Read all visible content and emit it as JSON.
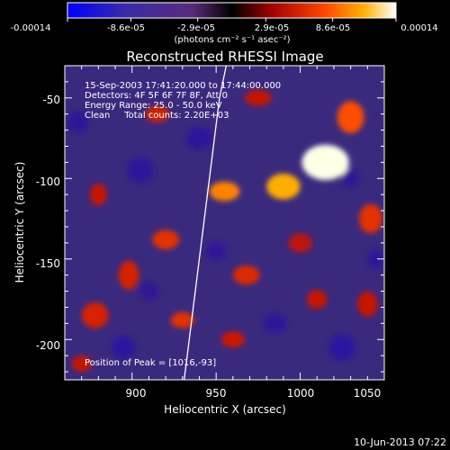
{
  "chart_data": {
    "type": "heatmap",
    "title": "Reconstructed RHESSI Image",
    "xlabel": "Heliocentric X (arcsec)",
    "ylabel": "Heliocentric Y (arcsec)",
    "xlim": [
      860,
      1050
    ],
    "ylim": [
      -225,
      -30
    ],
    "x_ticks": [
      900,
      950,
      1000,
      1050
    ],
    "y_ticks": [
      -50,
      -100,
      -150,
      -200
    ],
    "colorbar": {
      "tick_labels": [
        "-0.00014",
        "-8.6e-05",
        "-2.9e-05",
        "2.9e-05",
        "8.6e-05",
        "0.00014"
      ],
      "tick_values": [
        -0.00014,
        -8.6e-05,
        -2.9e-05,
        2.9e-05,
        8.6e-05,
        0.00014
      ],
      "range": [
        -0.00014,
        0.00014
      ],
      "units": "(photons cm⁻² s⁻¹ asec⁻²)"
    },
    "annotations": [
      "15-Sep-2003 17:41:20.000 to 17:44:00.000",
      "Detectors: 4F 5F 6F 7F 8F, Att 0",
      "Energy Range: 25.0 - 50.0 keV",
      "Clean     Total counts: 2.20E+03"
    ],
    "peak_label": "Position of Peak = [1016,-93]",
    "peak": [
      1016,
      -93
    ],
    "limb_line": [
      [
        931,
        -225
      ],
      [
        937,
        -175
      ],
      [
        943,
        -125
      ],
      [
        952,
        -50
      ],
      [
        956,
        -30
      ]
    ],
    "sources": [
      {
        "x": 1015,
        "y": -90,
        "value": 0.00014,
        "sx": 14,
        "sy": 11
      },
      {
        "x": 990,
        "y": -105,
        "value": 0.00011,
        "sx": 10,
        "sy": 8
      },
      {
        "x": 955,
        "y": -108,
        "value": 9.5e-05,
        "sx": 9,
        "sy": 6
      },
      {
        "x": 1030,
        "y": -62,
        "value": 7.5e-05,
        "sx": 8,
        "sy": 10
      },
      {
        "x": 1042,
        "y": -125,
        "value": 6e-05,
        "sx": 7,
        "sy": 9
      },
      {
        "x": 920,
        "y": -138,
        "value": 6e-05,
        "sx": 8,
        "sy": 6
      },
      {
        "x": 898,
        "y": -160,
        "value": 5e-05,
        "sx": 6,
        "sy": 9
      },
      {
        "x": 968,
        "y": -160,
        "value": 5.5e-05,
        "sx": 8,
        "sy": 6
      },
      {
        "x": 1010,
        "y": -175,
        "value": 4e-05,
        "sx": 6,
        "sy": 6
      },
      {
        "x": 930,
        "y": -188,
        "value": 6e-05,
        "sx": 7,
        "sy": 5
      },
      {
        "x": 878,
        "y": -185,
        "value": 5e-05,
        "sx": 8,
        "sy": 8
      },
      {
        "x": 960,
        "y": -200,
        "value": 4.5e-05,
        "sx": 7,
        "sy": 5
      },
      {
        "x": 1040,
        "y": -178,
        "value": 4e-05,
        "sx": 6,
        "sy": 8
      },
      {
        "x": 915,
        "y": -60,
        "value": 5e-05,
        "sx": 7,
        "sy": 5
      },
      {
        "x": 975,
        "y": -50,
        "value": 4e-05,
        "sx": 8,
        "sy": 5
      },
      {
        "x": 880,
        "y": -110,
        "value": 4e-05,
        "sx": 5,
        "sy": 7
      },
      {
        "x": 1000,
        "y": -140,
        "value": 3.5e-05,
        "sx": 7,
        "sy": 6
      },
      {
        "x": 870,
        "y": -215,
        "value": 4e-05,
        "sx": 6,
        "sy": 5
      },
      {
        "x": 905,
        "y": -95,
        "value": -4e-05,
        "sx": 8,
        "sy": 8
      },
      {
        "x": 940,
        "y": -75,
        "value": -4e-05,
        "sx": 8,
        "sy": 7
      },
      {
        "x": 895,
        "y": -205,
        "value": -5e-05,
        "sx": 7,
        "sy": 7
      },
      {
        "x": 1025,
        "y": -205,
        "value": -5e-05,
        "sx": 8,
        "sy": 8
      },
      {
        "x": 950,
        "y": -145,
        "value": -3.5e-05,
        "sx": 6,
        "sy": 6
      },
      {
        "x": 985,
        "y": -190,
        "value": -4e-05,
        "sx": 7,
        "sy": 6
      },
      {
        "x": 1045,
        "y": -150,
        "value": -4e-05,
        "sx": 5,
        "sy": 6
      },
      {
        "x": 868,
        "y": -65,
        "value": -4e-05,
        "sx": 6,
        "sy": 7
      },
      {
        "x": 910,
        "y": -170,
        "value": -3e-05,
        "sx": 6,
        "sy": 6
      },
      {
        "x": 1030,
        "y": -100,
        "value": -3e-05,
        "sx": 5,
        "sy": 6
      }
    ]
  },
  "footer": {
    "timestamp": "10-Jun-2013 07:22"
  }
}
